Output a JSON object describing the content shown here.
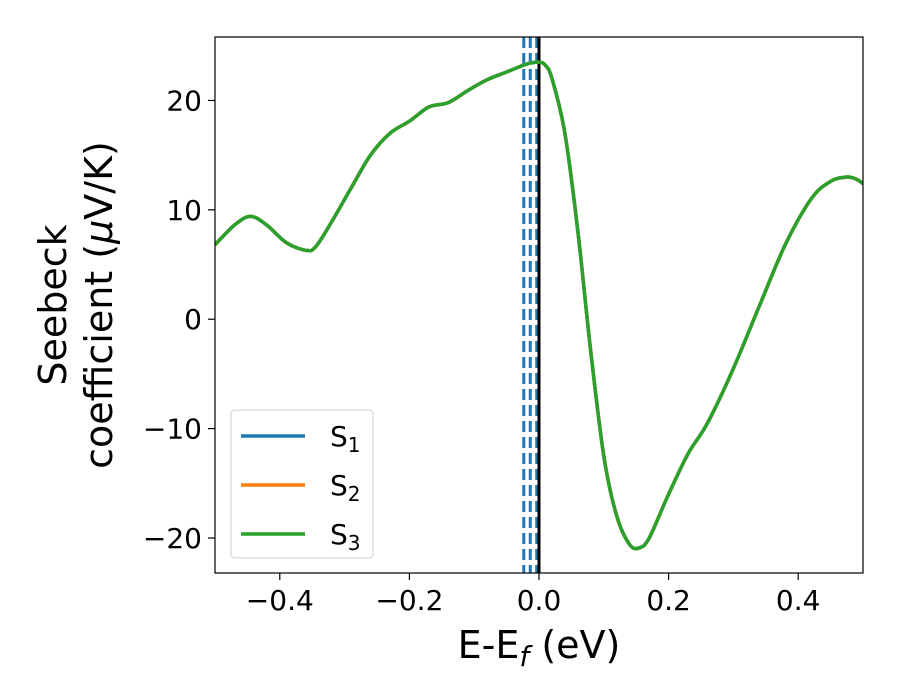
{
  "chart_data": {
    "type": "line",
    "xlabel": "E-E",
    "xlabel_sub": "f",
    "xlabel_unit": " (eV)",
    "ylabel_line1": "Seebeck",
    "ylabel_line2": "coefficient  (",
    "ylabel_mu": "μ",
    "ylabel_unit": "V/K)",
    "xlim": [
      -0.5,
      0.5
    ],
    "ylim": [
      -23.2,
      25.8
    ],
    "xticks": [
      -0.4,
      -0.2,
      0.0,
      0.2,
      0.4
    ],
    "xtick_labels": [
      "−0.4",
      "−0.2",
      "0.0",
      "0.2",
      "0.4"
    ],
    "yticks": [
      -20,
      -10,
      0,
      10,
      20
    ],
    "ytick_labels": [
      "−20",
      "−10",
      "0",
      "10",
      "20"
    ],
    "grid": false,
    "legend_placement": "lower-left",
    "vertical_lines": [
      {
        "x": -0.0235,
        "style": "dashed",
        "color": "#1f77b4"
      },
      {
        "x": -0.0135,
        "style": "dashed",
        "color": "#1f77b4"
      },
      {
        "x": -0.0035,
        "style": "dashed",
        "color": "#1f77b4"
      },
      {
        "x": 0.0,
        "style": "solid",
        "color": "#000000"
      }
    ],
    "series": [
      {
        "name": "S",
        "sub": "1",
        "color": "#1f77b4",
        "x": [
          -0.5,
          -0.47,
          -0.445,
          -0.42,
          -0.39,
          -0.36,
          -0.345,
          -0.32,
          -0.29,
          -0.26,
          -0.23,
          -0.2,
          -0.17,
          -0.14,
          -0.11,
          -0.08,
          -0.05,
          -0.02,
          0.0,
          0.01,
          0.02,
          0.04,
          0.06,
          0.08,
          0.1,
          0.12,
          0.14,
          0.155,
          0.17,
          0.2,
          0.23,
          0.26,
          0.3,
          0.34,
          0.38,
          0.42,
          0.45,
          0.475,
          0.49,
          0.5
        ],
        "y": [
          6.8,
          8.6,
          9.4,
          8.6,
          7.0,
          6.3,
          6.6,
          8.9,
          12.0,
          15.0,
          17.0,
          18.1,
          19.4,
          19.8,
          20.9,
          21.9,
          22.6,
          23.3,
          23.5,
          23.2,
          22.0,
          17.0,
          8.0,
          -3.0,
          -12.5,
          -18.0,
          -20.6,
          -20.9,
          -20.0,
          -16.0,
          -12.3,
          -9.5,
          -4.5,
          1.2,
          6.8,
          11.0,
          12.6,
          13.0,
          12.8,
          12.4
        ]
      },
      {
        "name": "S",
        "sub": "2",
        "color": "#ff7f0e",
        "x": [
          -0.5,
          -0.47,
          -0.445,
          -0.42,
          -0.39,
          -0.36,
          -0.345,
          -0.32,
          -0.29,
          -0.26,
          -0.23,
          -0.2,
          -0.17,
          -0.14,
          -0.11,
          -0.08,
          -0.05,
          -0.02,
          0.0,
          0.01,
          0.02,
          0.04,
          0.06,
          0.08,
          0.1,
          0.12,
          0.14,
          0.155,
          0.17,
          0.2,
          0.23,
          0.26,
          0.3,
          0.34,
          0.38,
          0.42,
          0.45,
          0.475,
          0.49,
          0.5
        ],
        "y": [
          6.8,
          8.6,
          9.4,
          8.6,
          7.0,
          6.3,
          6.6,
          8.9,
          12.0,
          15.0,
          17.0,
          18.1,
          19.4,
          19.8,
          20.9,
          21.9,
          22.6,
          23.3,
          23.5,
          23.2,
          22.0,
          17.0,
          8.0,
          -3.0,
          -12.5,
          -18.0,
          -20.6,
          -20.9,
          -20.0,
          -16.0,
          -12.3,
          -9.5,
          -4.5,
          1.2,
          6.8,
          11.0,
          12.6,
          13.0,
          12.8,
          12.4
        ]
      },
      {
        "name": "S",
        "sub": "3",
        "color": "#2ca02c",
        "x": [
          -0.5,
          -0.47,
          -0.445,
          -0.42,
          -0.39,
          -0.36,
          -0.345,
          -0.32,
          -0.29,
          -0.26,
          -0.23,
          -0.2,
          -0.17,
          -0.14,
          -0.11,
          -0.08,
          -0.05,
          -0.02,
          0.0,
          0.01,
          0.02,
          0.04,
          0.06,
          0.08,
          0.1,
          0.12,
          0.14,
          0.155,
          0.17,
          0.2,
          0.23,
          0.26,
          0.3,
          0.34,
          0.38,
          0.42,
          0.45,
          0.475,
          0.49,
          0.5
        ],
        "y": [
          6.8,
          8.6,
          9.4,
          8.6,
          7.0,
          6.3,
          6.6,
          8.9,
          12.0,
          15.0,
          17.0,
          18.1,
          19.4,
          19.8,
          20.9,
          21.9,
          22.6,
          23.3,
          23.5,
          23.2,
          22.0,
          17.0,
          8.0,
          -3.0,
          -12.5,
          -18.0,
          -20.6,
          -20.9,
          -20.0,
          -16.0,
          -12.3,
          -9.5,
          -4.5,
          1.2,
          6.8,
          11.0,
          12.6,
          13.0,
          12.8,
          12.4
        ]
      }
    ]
  }
}
